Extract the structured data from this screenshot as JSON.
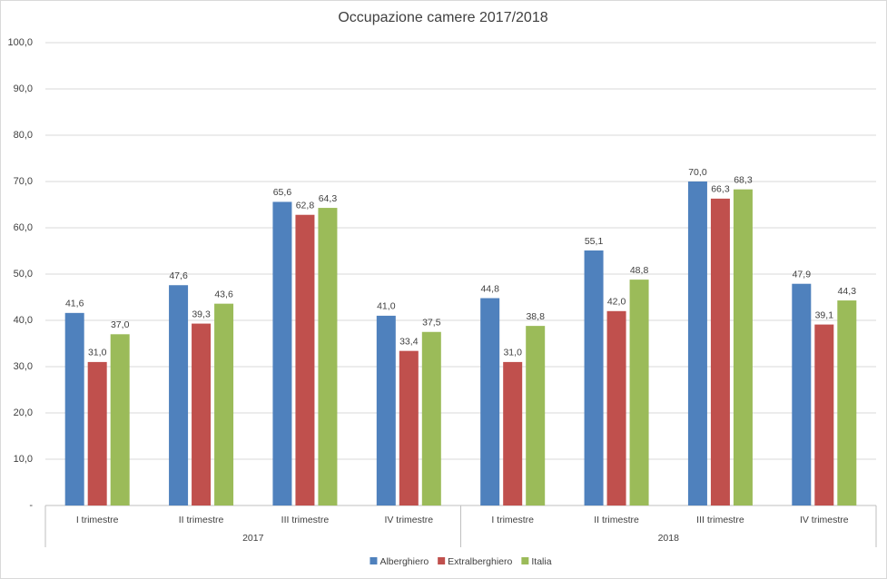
{
  "chart_data": {
    "type": "bar",
    "title": "Occupazione camere 2017/2018",
    "category_groups": [
      {
        "name": "2017",
        "categories": [
          "I trimestre",
          "II trimestre",
          "III trimestre",
          "IV trimestre"
        ]
      },
      {
        "name": "2018",
        "categories": [
          "I trimestre",
          "II trimestre",
          "III trimestre",
          "IV trimestre"
        ]
      }
    ],
    "series": [
      {
        "name": "Alberghiero",
        "color": "#4f81bd",
        "values": [
          41.6,
          47.6,
          65.6,
          41.0,
          44.8,
          55.1,
          70.0,
          47.9
        ],
        "value_labels": [
          "41,6",
          "47,6",
          "65,6",
          "41,0",
          "44,8",
          "55,1",
          "70,0",
          "47,9"
        ]
      },
      {
        "name": "Extralberghiero",
        "color": "#c0504d",
        "values": [
          31.0,
          39.3,
          62.8,
          33.4,
          31.0,
          42.0,
          66.3,
          39.1
        ],
        "value_labels": [
          "31,0",
          "39,3",
          "62,8",
          "33,4",
          "31,0",
          "42,0",
          "66,3",
          "39,1"
        ]
      },
      {
        "name": "Italia",
        "color": "#9bbb59",
        "values": [
          37.0,
          43.6,
          64.3,
          37.5,
          38.8,
          48.8,
          68.3,
          44.3
        ],
        "value_labels": [
          "37,0",
          "43,6",
          "64,3",
          "37,5",
          "38,8",
          "48,8",
          "68,3",
          "44,3"
        ]
      }
    ],
    "ylim": [
      0,
      100
    ],
    "yticks": [
      {
        "value": 0,
        "label": "-"
      },
      {
        "value": 10,
        "label": "10,0"
      },
      {
        "value": 20,
        "label": "20,0"
      },
      {
        "value": 30,
        "label": "30,0"
      },
      {
        "value": 40,
        "label": "40,0"
      },
      {
        "value": 50,
        "label": "50,0"
      },
      {
        "value": 60,
        "label": "60,0"
      },
      {
        "value": 70,
        "label": "70,0"
      },
      {
        "value": 80,
        "label": "80,0"
      },
      {
        "value": 90,
        "label": "90,0"
      },
      {
        "value": 100,
        "label": "100,0"
      }
    ],
    "grid": true,
    "legend": "bottom"
  }
}
